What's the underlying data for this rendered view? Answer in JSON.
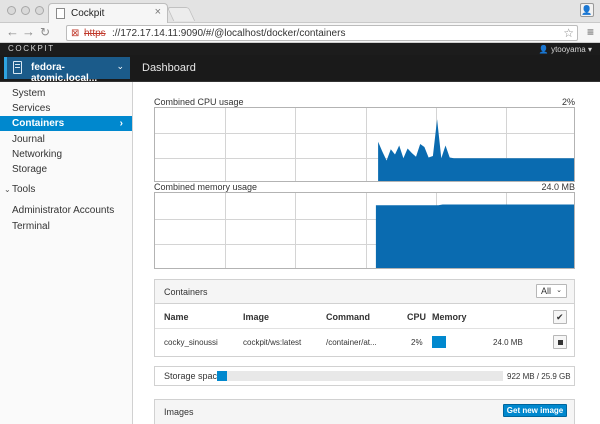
{
  "browser": {
    "tab_title": "Cockpit",
    "url_scheme": "https",
    "url_rest": "://172.17.14.11:9090/#/@localhost/docker/containers",
    "icons": {
      "lock": "insecure-lock-icon",
      "star": "star-icon",
      "menu": "hamburger-menu-icon"
    }
  },
  "header": {
    "brand": "COCKPIT",
    "user": "ytooyama",
    "host": "fedora-atomic.local...",
    "dashboard_label": "Dashboard"
  },
  "sidebar": {
    "items": [
      {
        "label": "System"
      },
      {
        "label": "Services"
      },
      {
        "label": "Containers",
        "active": true
      },
      {
        "label": "Journal"
      },
      {
        "label": "Networking"
      },
      {
        "label": "Storage"
      }
    ],
    "tools_label": "Tools",
    "tools_items": [
      {
        "label": "Administrator Accounts"
      },
      {
        "label": "Terminal"
      }
    ]
  },
  "colors": {
    "accent": "#0088ce",
    "chart_fill": "#0a6bb0",
    "sidebar_active": "#0088ce"
  },
  "cpu_chart": {
    "title": "Combined CPU usage",
    "value": "2%",
    "chart_data": {
      "type": "area",
      "title": "Combined CPU usage",
      "y_fraction_series": [
        0,
        0,
        0,
        0,
        0,
        0,
        0,
        0,
        0,
        0,
        0,
        0,
        0,
        0,
        0,
        0,
        0,
        0,
        0,
        0,
        0,
        0,
        0,
        0,
        0,
        0,
        0,
        0,
        0,
        0,
        0,
        0,
        0,
        0,
        0,
        0,
        0,
        0,
        0,
        0,
        0,
        0,
        0,
        0,
        0,
        0,
        0,
        0,
        0,
        0,
        0,
        0,
        0,
        0.55,
        0.42,
        0.3,
        0.45,
        0.38,
        0.5,
        0.33,
        0.46,
        0.4,
        0.35,
        0.52,
        0.48,
        0.34,
        0.36,
        0.85,
        0.33,
        0.5,
        0.34,
        0.33,
        0.33,
        0.33,
        0.33,
        0.33,
        0.33,
        0.33,
        0.33,
        0.33,
        0.33,
        0.33,
        0.33,
        0.33,
        0.33,
        0.33,
        0.33,
        0.33,
        0.33,
        0.33,
        0.33,
        0.33,
        0.33,
        0.33,
        0.33,
        0.33,
        0.33,
        0.33,
        0.33,
        0.33,
        0.33
      ],
      "grid": true
    }
  },
  "memory_chart": {
    "title": "Combined memory usage",
    "value": "24.0 MB",
    "chart_data": {
      "type": "area",
      "title": "Combined memory usage",
      "y_fraction_series": [
        0,
        0,
        0,
        0,
        0,
        0,
        0,
        0,
        0,
        0,
        0,
        0,
        0,
        0,
        0,
        0,
        0,
        0,
        0,
        0,
        0,
        0,
        0,
        0,
        0,
        0,
        0,
        0,
        0,
        0,
        0,
        0,
        0,
        0,
        0,
        0,
        0,
        0,
        0,
        0,
        0,
        0,
        0,
        0,
        0,
        0,
        0,
        0,
        0,
        0,
        0,
        0,
        0,
        0.84,
        0.84,
        0.84,
        0.84,
        0.84,
        0.84,
        0.84,
        0.84,
        0.84,
        0.84,
        0.84,
        0.84,
        0.84,
        0.84,
        0.84,
        0.84,
        0.85,
        0.85,
        0.85,
        0.85,
        0.85,
        0.85,
        0.85,
        0.85,
        0.85,
        0.85,
        0.85,
        0.85,
        0.85,
        0.85,
        0.85,
        0.85,
        0.85,
        0.85,
        0.85,
        0.85,
        0.85,
        0.85,
        0.85,
        0.85,
        0.85,
        0.85,
        0.85,
        0.85,
        0.85,
        0.85,
        0.85,
        0.85,
        0.85
      ],
      "grid": true
    }
  },
  "containers": {
    "title": "Containers",
    "filter": "All",
    "columns": [
      "Name",
      "Image",
      "Command",
      "CPU",
      "Memory"
    ],
    "rows": [
      {
        "name": "cocky_sinoussi",
        "image": "cockpit/ws:latest",
        "command": "/container/at...",
        "cpu": "2%",
        "memory": "24.0 MB",
        "memory_fraction": 0.18
      }
    ]
  },
  "storage": {
    "label": "Storage space",
    "value": "922 MB / 25.9 GB",
    "used_fraction": 0.036
  },
  "images": {
    "title": "Images",
    "button": "Get new image"
  }
}
